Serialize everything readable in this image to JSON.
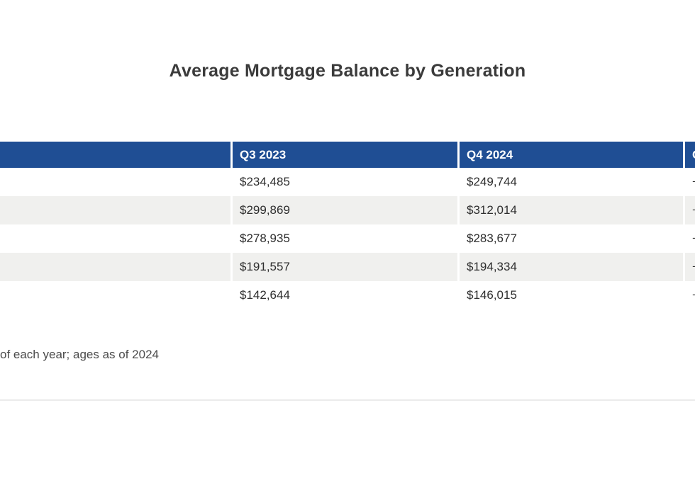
{
  "title": "Average Mortgage Balance by Generation",
  "table": {
    "columns": [
      "",
      "Q3 2023",
      "Q4 2024",
      "Change"
    ],
    "rows": [
      {
        "cells": [
          "",
          "$234,485",
          "$249,744",
          "+"
        ]
      },
      {
        "cells": [
          "",
          "$299,869",
          "$312,014",
          "+"
        ]
      },
      {
        "cells": [
          "",
          "$278,935",
          "$283,677",
          "+"
        ]
      },
      {
        "cells": [
          "",
          "$191,557",
          "$194,334",
          "+"
        ]
      },
      {
        "cells": [
          "",
          "$142,644",
          "$146,015",
          "+"
        ]
      }
    ]
  },
  "footnote": "of each year; ages as of 2024",
  "colors": {
    "header_bg": "#1f4e94",
    "header_text": "#ffffff",
    "row_alt_bg": "#f0f0ee",
    "cell_text": "#2e2e2e",
    "title_text": "#3b3b3b",
    "divider": "#ebebeb"
  }
}
